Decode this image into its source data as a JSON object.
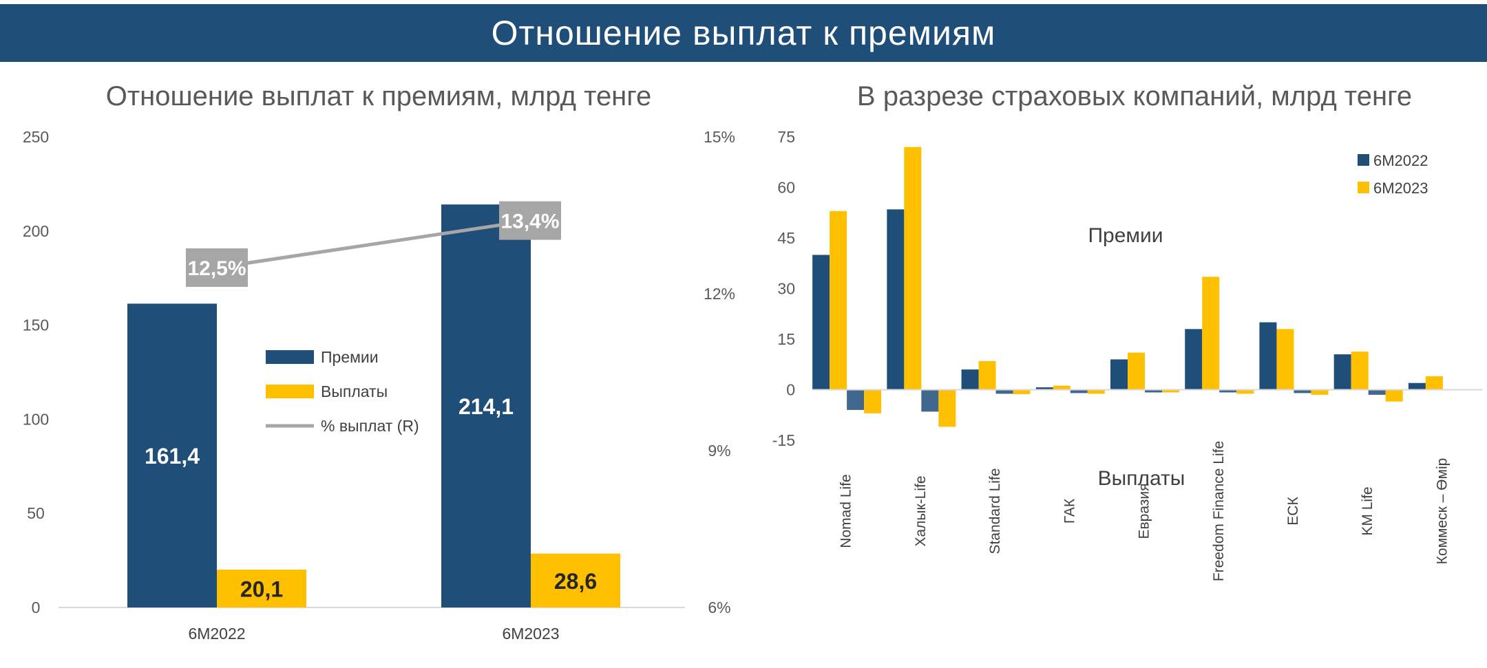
{
  "banner_title": "Отношение выплат к премиям",
  "chart_data": [
    {
      "type": "bar",
      "title": "Отношение выплат к премиям, млрд тенге",
      "categories": [
        "6M2022",
        "6M2023"
      ],
      "series": [
        {
          "name": "Премии",
          "values": [
            161.4,
            214.1
          ],
          "labels": [
            "161,4",
            "214,1"
          ],
          "color": "#1f4e79"
        },
        {
          "name": "Выплаты",
          "values": [
            20.1,
            28.6
          ],
          "labels": [
            "20,1",
            "28,6"
          ],
          "color": "#ffc000"
        }
      ],
      "line_series": {
        "name": "% выплат (R)",
        "values": [
          12.5,
          13.4
        ],
        "labels": [
          "12,5%",
          "13,4%"
        ],
        "color": "#a6a6a6",
        "axis": "right"
      },
      "ylim": [
        0,
        250
      ],
      "yticks": [
        0,
        50,
        100,
        150,
        200,
        250
      ],
      "ytick_labels": [
        "0",
        "50",
        "100",
        "150",
        "200",
        "250"
      ],
      "y2lim": [
        6,
        15
      ],
      "y2ticks": [
        6,
        9,
        12,
        15
      ],
      "y2tick_labels": [
        "6%",
        "9%",
        "12%",
        "15%"
      ],
      "legend": [
        "Премии",
        "Выплаты",
        "% выплат (R)"
      ],
      "legend_position": "center",
      "grid": false
    },
    {
      "type": "bar",
      "title": "В разрезе страховых компаний, млрд тенге",
      "categories": [
        "Nomad Life",
        "Халык-Life",
        "Standard Life",
        "ГАК",
        "Евразия",
        "Freedom Finance Life",
        "ЕСК",
        "KM Life",
        "Коммеск – Өмір"
      ],
      "series": [
        {
          "name": "6M2022",
          "color": "#1f4e79",
          "premiums": [
            40,
            53.5,
            6,
            0.7,
            9,
            18,
            20,
            10.5,
            2
          ],
          "payouts": [
            -6,
            -6.5,
            -1.2,
            -1,
            -0.8,
            -0.8,
            -1,
            -1.5,
            0
          ]
        },
        {
          "name": "6M2023",
          "color": "#ffc000",
          "premiums": [
            53,
            72,
            8.5,
            1.2,
            11,
            33.5,
            18,
            11.3,
            4
          ],
          "payouts": [
            -7,
            -11,
            -1.3,
            -1.2,
            -0.8,
            -1.2,
            -1.5,
            -3.5,
            0
          ]
        }
      ],
      "ylim": [
        -15,
        75
      ],
      "yticks": [
        -15,
        0,
        15,
        30,
        45,
        60,
        75
      ],
      "ytick_labels": [
        "-15",
        "0",
        "15",
        "30",
        "45",
        "60",
        "75"
      ],
      "annotations": [
        "Премии",
        "Выплаты"
      ],
      "legend_position": "top-right",
      "grid": false
    }
  ]
}
